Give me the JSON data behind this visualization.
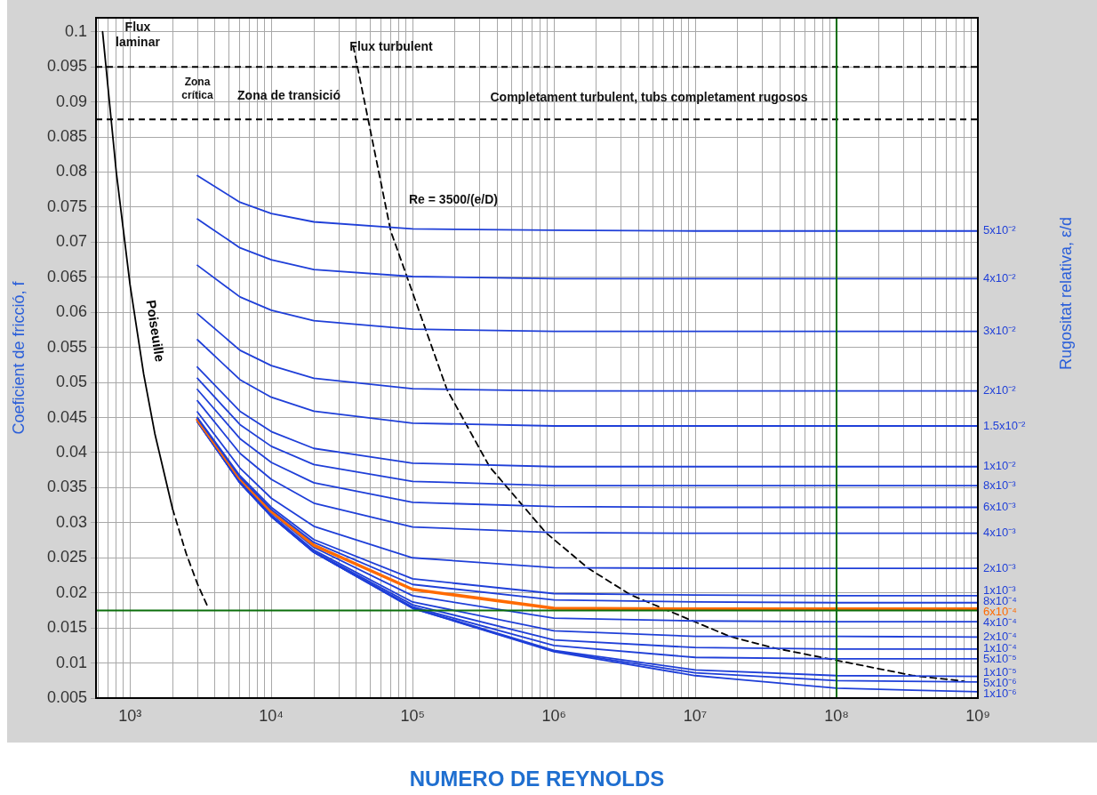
{
  "chart_data": {
    "type": "line",
    "xlabel": "NUMERO DE REYNOLDS",
    "ylabel": "Coeficient de fricció, f",
    "y2label": "Rugositat relativa, ε/d",
    "log": "x",
    "grid": true,
    "legend": false,
    "marker": "none",
    "line_style": "solid",
    "xlim": [
      575,
      1000000000
    ],
    "ylim": [
      0.005,
      0.102
    ],
    "xticks": [
      {
        "value": 600,
        "label": null
      },
      {
        "value": 700,
        "label": null
      },
      {
        "value": 800,
        "label": null
      },
      {
        "value": 900,
        "label": null
      },
      {
        "value": 1000,
        "label": "10³"
      },
      {
        "value": 2000,
        "label": null
      },
      {
        "value": 3000,
        "label": null
      },
      {
        "value": 4000,
        "label": null
      },
      {
        "value": 5000,
        "label": null
      },
      {
        "value": 6000,
        "label": null
      },
      {
        "value": 7000,
        "label": null
      },
      {
        "value": 8000,
        "label": null
      },
      {
        "value": 9000,
        "label": null
      },
      {
        "value": 10000,
        "label": "10⁴"
      },
      {
        "value": 20000,
        "label": null
      },
      {
        "value": 30000,
        "label": null
      },
      {
        "value": 40000,
        "label": null
      },
      {
        "value": 50000,
        "label": null
      },
      {
        "value": 60000,
        "label": null
      },
      {
        "value": 70000,
        "label": null
      },
      {
        "value": 80000,
        "label": null
      },
      {
        "value": 90000,
        "label": null
      },
      {
        "value": 100000,
        "label": "10⁵"
      },
      {
        "value": 200000,
        "label": null
      },
      {
        "value": 300000,
        "label": null
      },
      {
        "value": 400000,
        "label": null
      },
      {
        "value": 500000,
        "label": null
      },
      {
        "value": 600000,
        "label": null
      },
      {
        "value": 700000,
        "label": null
      },
      {
        "value": 800000,
        "label": null
      },
      {
        "value": 900000,
        "label": null
      },
      {
        "value": 1000000,
        "label": "10⁶"
      },
      {
        "value": 2000000,
        "label": null
      },
      {
        "value": 3000000,
        "label": null
      },
      {
        "value": 4000000,
        "label": null
      },
      {
        "value": 5000000,
        "label": null
      },
      {
        "value": 6000000,
        "label": null
      },
      {
        "value": 7000000,
        "label": null
      },
      {
        "value": 8000000,
        "label": null
      },
      {
        "value": 9000000,
        "label": null
      },
      {
        "value": 10000000,
        "label": "10⁷"
      },
      {
        "value": 20000000,
        "label": null
      },
      {
        "value": 30000000,
        "label": null
      },
      {
        "value": 40000000,
        "label": null
      },
      {
        "value": 50000000,
        "label": null
      },
      {
        "value": 60000000,
        "label": null
      },
      {
        "value": 70000000,
        "label": null
      },
      {
        "value": 80000000,
        "label": null
      },
      {
        "value": 90000000,
        "label": null
      },
      {
        "value": 100000000,
        "label": "10⁸"
      },
      {
        "value": 200000000,
        "label": null
      },
      {
        "value": 300000000,
        "label": null
      },
      {
        "value": 400000000,
        "label": null
      },
      {
        "value": 500000000,
        "label": null
      },
      {
        "value": 600000000,
        "label": null
      },
      {
        "value": 700000000,
        "label": null
      },
      {
        "value": 800000000,
        "label": null
      },
      {
        "value": 900000000,
        "label": null
      },
      {
        "value": 1000000000,
        "label": "10⁹"
      }
    ],
    "yticks": [
      0.005,
      0.01,
      0.015,
      0.02,
      0.025,
      0.03,
      0.035,
      0.04,
      0.045,
      0.05,
      0.055,
      0.06,
      0.065,
      0.07,
      0.075,
      0.08,
      0.085,
      0.09,
      0.095,
      0.1
    ],
    "x": [
      3000,
      6000,
      10000,
      20000,
      100000,
      1000000,
      10000000,
      100000000,
      1000000000
    ],
    "series": [
      {
        "name": "5x10⁻²",
        "color": "#1f3fd8",
        "values": [
          0.0795,
          0.0757,
          0.0741,
          0.0729,
          0.0719,
          0.0717,
          0.0716,
          0.0716,
          0.0716
        ]
      },
      {
        "name": "4x10⁻²",
        "color": "#1f3fd8",
        "values": [
          0.0733,
          0.0692,
          0.0675,
          0.0661,
          0.0651,
          0.0648,
          0.0648,
          0.0648,
          0.0648
        ]
      },
      {
        "name": "3x10⁻²",
        "color": "#1f3fd8",
        "values": [
          0.0667,
          0.0622,
          0.0603,
          0.0588,
          0.0576,
          0.0573,
          0.0573,
          0.0573,
          0.0573
        ]
      },
      {
        "name": "2x10⁻²",
        "color": "#1f3fd8",
        "values": [
          0.0598,
          0.0546,
          0.0524,
          0.0506,
          0.0491,
          0.0488,
          0.0488,
          0.0488,
          0.0488
        ]
      },
      {
        "name": "1.5x10⁻²",
        "color": "#1f3fd8",
        "values": [
          0.0561,
          0.0504,
          0.0479,
          0.0459,
          0.0442,
          0.0438,
          0.0438,
          0.0438,
          0.0438
        ]
      },
      {
        "name": "1x10⁻²",
        "color": "#1f3fd8",
        "values": [
          0.0522,
          0.0459,
          0.043,
          0.0406,
          0.0385,
          0.038,
          0.038,
          0.038,
          0.038
        ]
      },
      {
        "name": "8x10⁻³",
        "color": "#1f3fd8",
        "values": [
          0.0506,
          0.044,
          0.0409,
          0.0383,
          0.0359,
          0.0353,
          0.0353,
          0.0353,
          0.0353
        ]
      },
      {
        "name": "6x10⁻³",
        "color": "#1f3fd8",
        "values": [
          0.049,
          0.042,
          0.0386,
          0.0357,
          0.0329,
          0.0323,
          0.0322,
          0.0322,
          0.0322
        ]
      },
      {
        "name": "4x10⁻³",
        "color": "#1f3fd8",
        "values": [
          0.0474,
          0.0399,
          0.0362,
          0.0328,
          0.0294,
          0.0286,
          0.0285,
          0.0285,
          0.0285
        ]
      },
      {
        "name": "2x10⁻³",
        "color": "#1f3fd8",
        "values": [
          0.0458,
          0.0378,
          0.0335,
          0.0295,
          0.025,
          0.0236,
          0.0235,
          0.0235,
          0.0235
        ]
      },
      {
        "name": "1x10⁻³",
        "color": "#1f3fd8",
        "values": [
          0.045,
          0.0367,
          0.0322,
          0.0276,
          0.022,
          0.0199,
          0.0197,
          0.0196,
          0.0196
        ]
      },
      {
        "name": "8x10⁻⁴",
        "color": "#1f3fd8",
        "values": [
          0.0449,
          0.0365,
          0.0319,
          0.0272,
          0.0212,
          0.019,
          0.0187,
          0.0186,
          0.0186
        ]
      },
      {
        "name": "6x10⁻⁴",
        "color": "#ff6a00",
        "values": [
          0.0447,
          0.0363,
          0.0316,
          0.0268,
          0.0205,
          0.0178,
          0.0177,
          0.0177,
          0.0177
        ]
      },
      {
        "name": "4x10⁻⁴",
        "color": "#1f3fd8",
        "values": [
          0.0446,
          0.0361,
          0.0314,
          0.0265,
          0.0196,
          0.0164,
          0.016,
          0.0159,
          0.0159
        ]
      },
      {
        "name": "2x10⁻⁴",
        "color": "#1f3fd8",
        "values": [
          0.0445,
          0.0359,
          0.0311,
          0.0261,
          0.0187,
          0.0146,
          0.0138,
          0.0138,
          0.0137
        ]
      },
      {
        "name": "1x10⁻⁴",
        "color": "#1f3fd8",
        "values": [
          0.0444,
          0.0358,
          0.031,
          0.0259,
          0.0183,
          0.0133,
          0.0122,
          0.012,
          0.012
        ]
      },
      {
        "name": "5x10⁻⁵",
        "color": "#1f3fd8",
        "values": [
          0.0444,
          0.0357,
          0.0309,
          0.0258,
          0.018,
          0.0125,
          0.0108,
          0.0106,
          0.0106
        ]
      },
      {
        "name": "1x10⁻⁵",
        "color": "#1f3fd8",
        "values": [
          0.0444,
          0.0357,
          0.0309,
          0.0258,
          0.0179,
          0.0118,
          0.009,
          0.0082,
          0.0081
        ]
      },
      {
        "name": "5x10⁻⁶",
        "color": "#1f3fd8",
        "values": [
          0.0444,
          0.0357,
          0.0309,
          0.0258,
          0.0178,
          0.0117,
          0.0086,
          0.0075,
          0.0073
        ]
      },
      {
        "name": "1x10⁻⁶",
        "color": "#1f3fd8",
        "values": [
          0.0444,
          0.0357,
          0.0309,
          0.0258,
          0.0178,
          0.0116,
          0.0082,
          0.0064,
          0.0059
        ]
      },
      {
        "name": "Poiseuille",
        "color": "#000000",
        "x": [
          640,
          800,
          1000,
          1250,
          1500,
          2000
        ],
        "values": [
          0.1,
          0.08,
          0.064,
          0.0512,
          0.0427,
          0.032
        ]
      },
      {
        "color": "#000000",
        "line_style": "dashed",
        "x": [
          2000,
          2500,
          3000,
          3500
        ],
        "values": [
          0.032,
          0.0256,
          0.0213,
          0.0183
        ]
      },
      {
        "color": "#000000",
        "line_style": "dashed",
        "x": [
          38000,
          70000,
          175000,
          350000,
          875000,
          1750000,
          3500000,
          17500000,
          35000000,
          350000000,
          800000000
        ],
        "values": [
          0.098,
          0.0716,
          0.049,
          0.038,
          0.0286,
          0.0235,
          0.0197,
          0.0138,
          0.0122,
          0.0082,
          0.0074
        ]
      }
    ],
    "ref_lines": [
      {
        "axis": "y",
        "value": 0.095,
        "color": "#000000",
        "line_style": "dashed"
      },
      {
        "axis": "y",
        "value": 0.0875,
        "color": "#000000",
        "line_style": "dashed"
      },
      {
        "axis": "x",
        "value": 100000000,
        "color": "#0a6e0a",
        "line_style": "solid"
      },
      {
        "axis": "y",
        "value": 0.0175,
        "color": "#0a6e0a",
        "line_style": "solid"
      }
    ],
    "annotations": [
      "Flux laminar",
      "Zona crítica",
      "Zona de transició",
      "Flux turbulent",
      "Completament turbulent, tubs completament rugosos",
      "Re = 3500/(e/D)"
    ]
  }
}
